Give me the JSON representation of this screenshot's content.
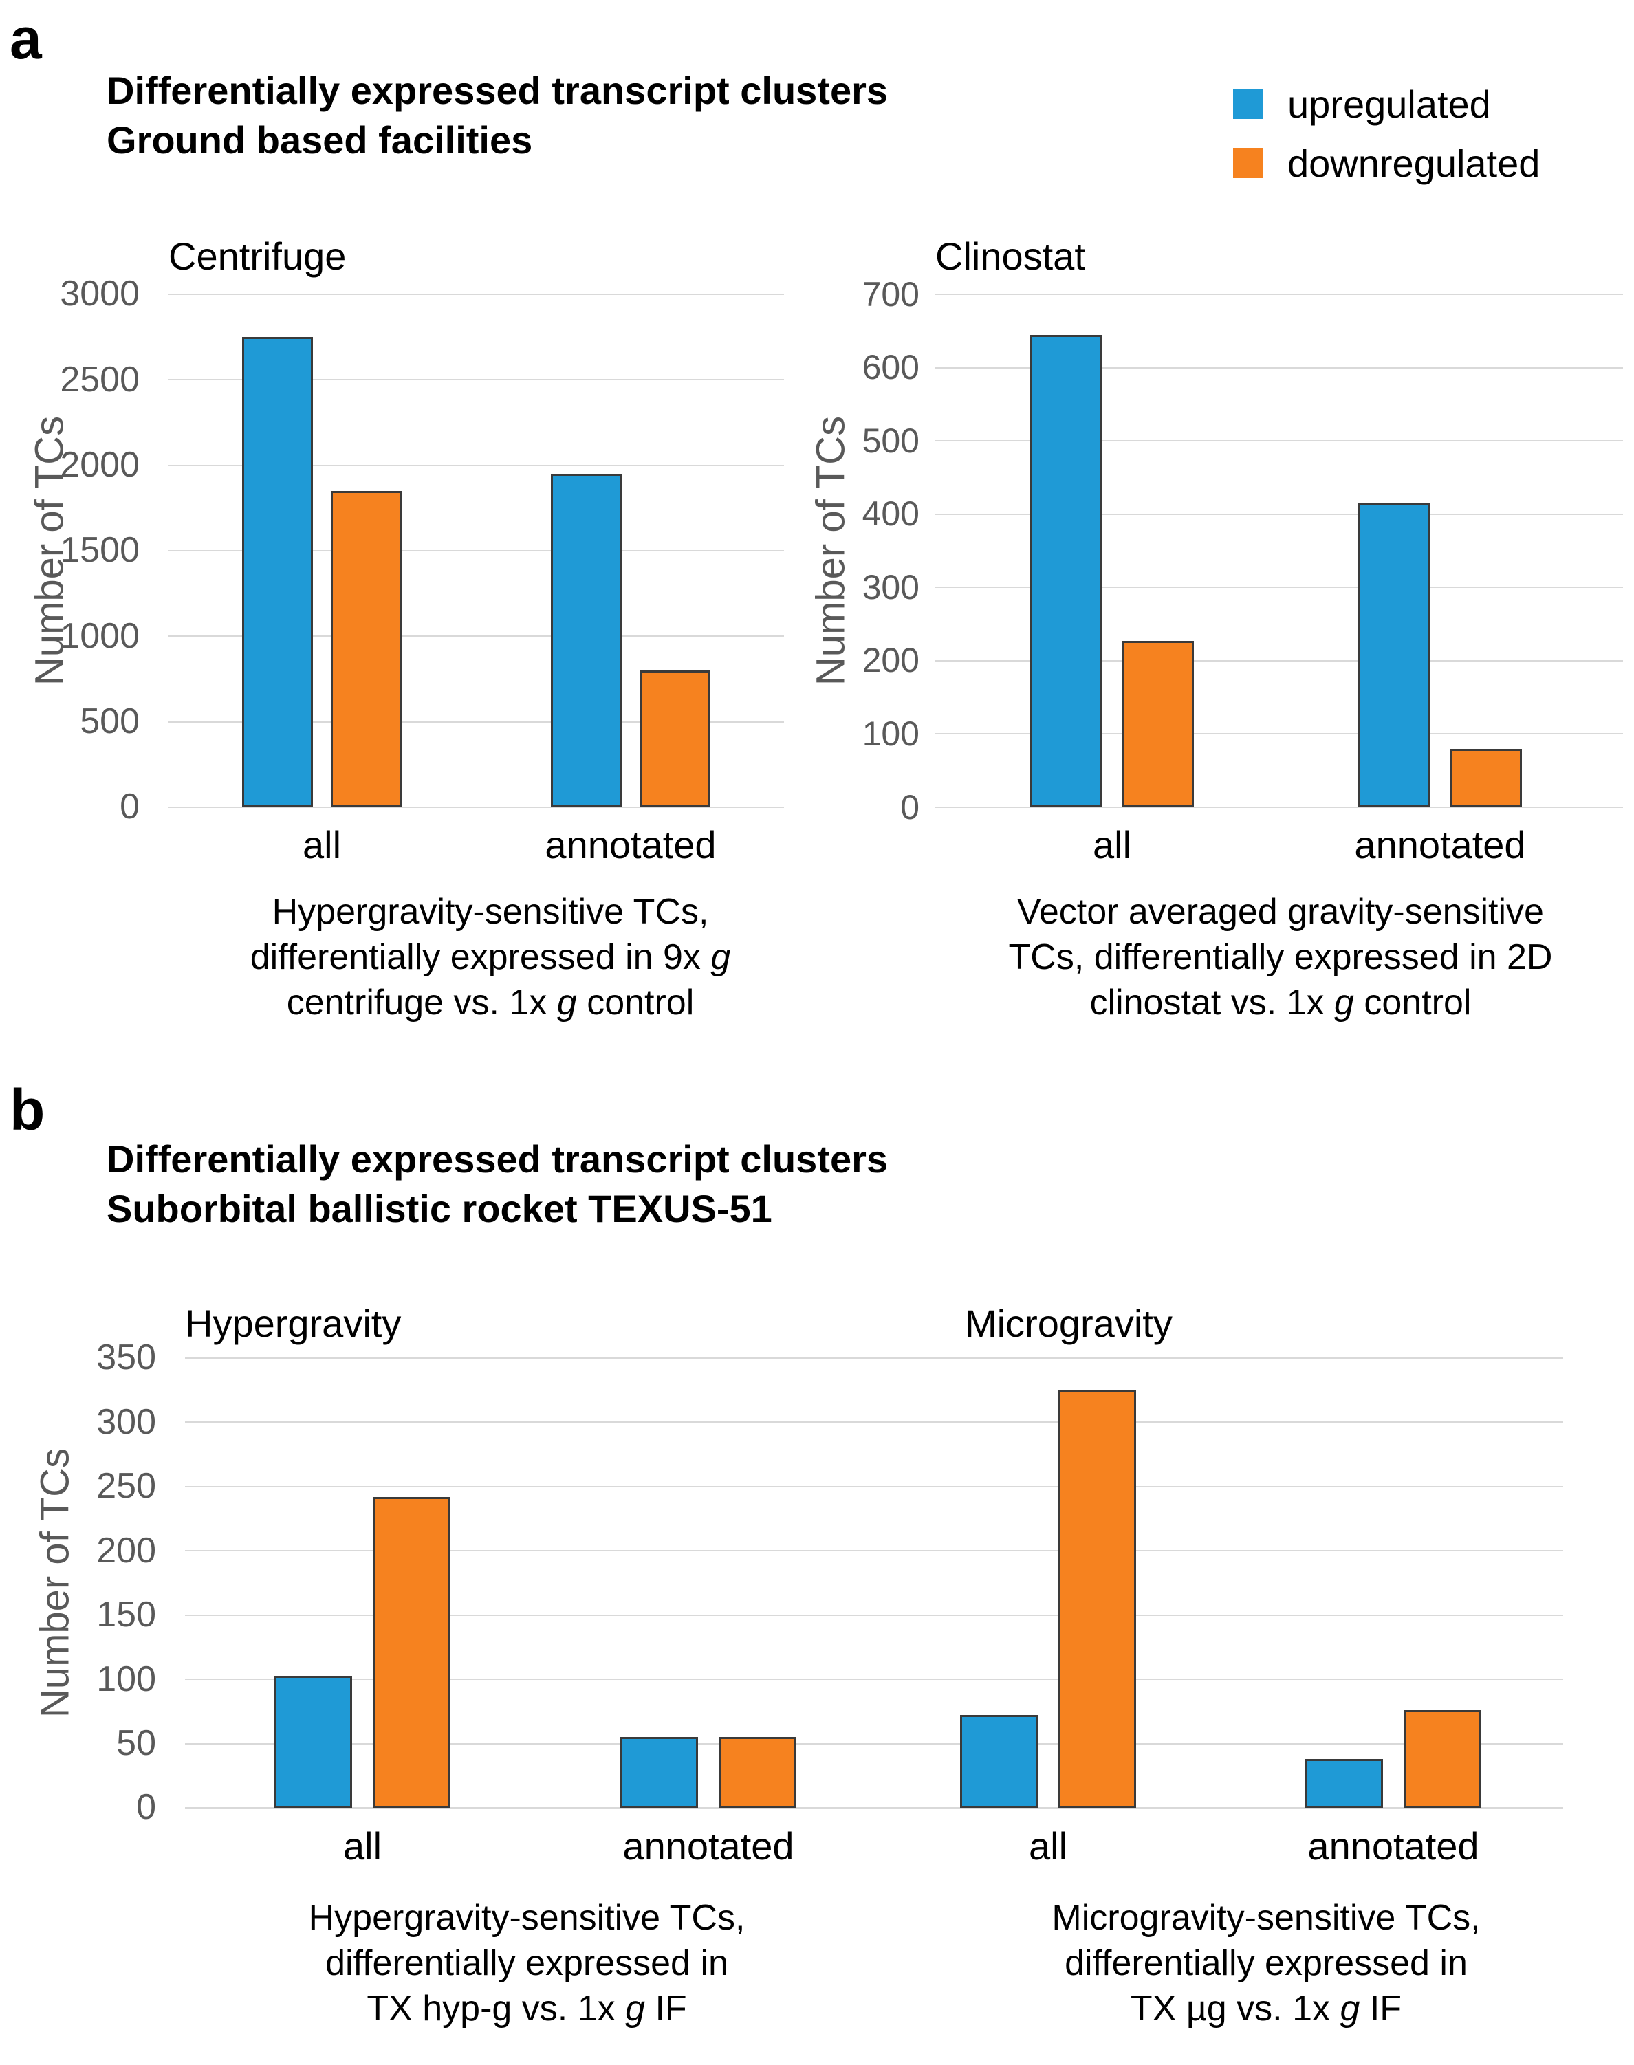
{
  "panels": [
    {
      "label": "a",
      "title_lines": [
        "Differentially expressed transcript clusters",
        "Ground based facilities"
      ]
    },
    {
      "label": "b",
      "title_lines": [
        "Differentially expressed transcript clusters",
        "Suborbital ballistic rocket TEXUS-51"
      ]
    }
  ],
  "legend": {
    "items": [
      {
        "label": "upregulated",
        "color": "#1F9AD6"
      },
      {
        "label": "downregulated",
        "color": "#F6821F"
      }
    ]
  },
  "colors": {
    "grid": "#D9D9D9",
    "axis_text": "#595959",
    "bar_outline": "#3A3A3A"
  },
  "chart_data": [
    {
      "id": "centrifuge",
      "type": "bar",
      "panel": "a",
      "title": "Centrifuge",
      "ylabel": "Number of TCs",
      "ylim": [
        0,
        3000
      ],
      "yticks": [
        0,
        500,
        1000,
        1500,
        2000,
        2500,
        3000
      ],
      "grid": true,
      "legend_position": "top-right",
      "categories": [
        "all",
        "annotated"
      ],
      "series": [
        {
          "name": "upregulated",
          "values": [
            2750,
            1950
          ]
        },
        {
          "name": "downregulated",
          "values": [
            1850,
            800
          ]
        }
      ],
      "caption_lines": [
        "Hypergravity-sensitive TCs,",
        "differentially expressed in 9x g",
        "centrifuge vs. 1x g control"
      ]
    },
    {
      "id": "clinostat",
      "type": "bar",
      "panel": "a",
      "title": "Clinostat",
      "ylabel": "Number of TCs",
      "ylim": [
        0,
        700
      ],
      "yticks": [
        0,
        100,
        200,
        300,
        400,
        500,
        600,
        700
      ],
      "grid": true,
      "categories": [
        "all",
        "annotated"
      ],
      "series": [
        {
          "name": "upregulated",
          "values": [
            645,
            415
          ]
        },
        {
          "name": "downregulated",
          "values": [
            227,
            80
          ]
        }
      ],
      "caption_lines": [
        "Vector averaged gravity-sensitive",
        "TCs, differentially expressed in 2D",
        "clinostat vs. 1x g control"
      ]
    },
    {
      "id": "texus_hypergravity",
      "type": "bar",
      "panel": "b",
      "title": "Hypergravity",
      "ylabel": "Number of TCs",
      "ylim": [
        0,
        350
      ],
      "yticks": [
        0,
        50,
        100,
        150,
        200,
        250,
        300,
        350
      ],
      "grid": true,
      "categories": [
        "all",
        "annotated"
      ],
      "series": [
        {
          "name": "upregulated",
          "values": [
            103,
            55
          ]
        },
        {
          "name": "downregulated",
          "values": [
            242,
            55
          ]
        }
      ],
      "caption_lines": [
        "Hypergravity-sensitive TCs,",
        "differentially expressed in",
        "TX hyp-g vs. 1x g IF"
      ]
    },
    {
      "id": "texus_microgravity",
      "type": "bar",
      "panel": "b",
      "title": "Microgravity",
      "ylabel": "",
      "ylim": [
        0,
        350
      ],
      "yticks": [
        0,
        50,
        100,
        150,
        200,
        250,
        300,
        350
      ],
      "grid": true,
      "categories": [
        "all",
        "annotated"
      ],
      "series": [
        {
          "name": "upregulated",
          "values": [
            72,
            38
          ]
        },
        {
          "name": "downregulated",
          "values": [
            325,
            76
          ]
        }
      ],
      "caption_lines": [
        "Microgravity-sensitive TCs,",
        "differentially expressed in",
        "TX µg vs. 1x g IF"
      ]
    }
  ]
}
